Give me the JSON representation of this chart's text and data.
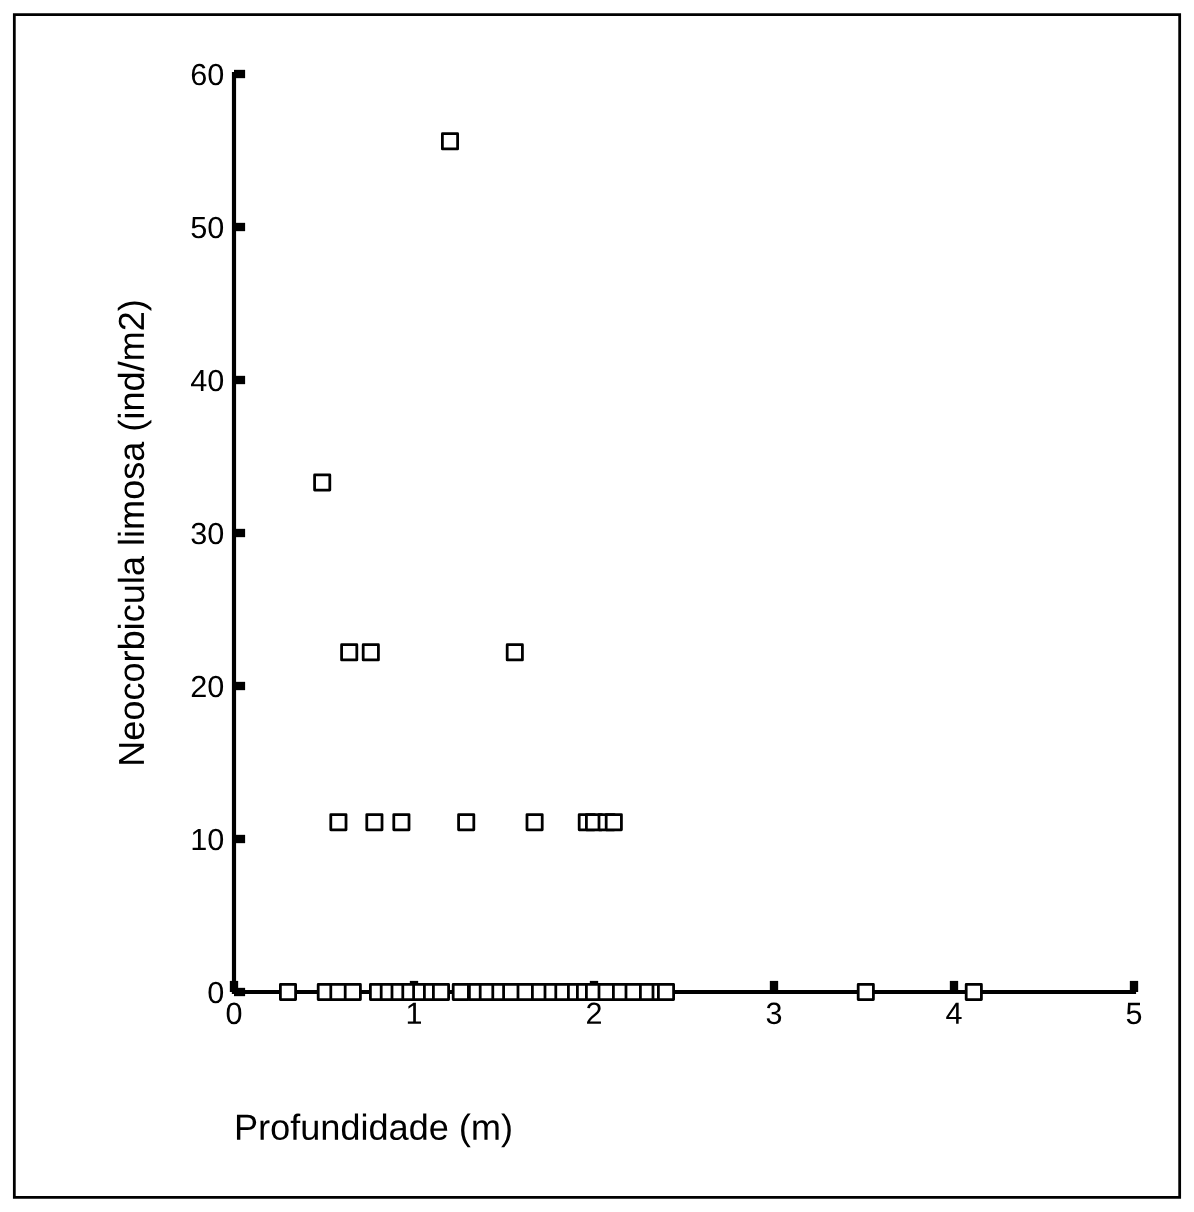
{
  "chart_data": {
    "type": "scatter",
    "xlabel": "Profundidade (m)",
    "ylabel": "Neocorbicula limosa (ind/m2)",
    "xlim": [
      0,
      5
    ],
    "xticks": [
      0,
      1,
      2,
      3,
      4,
      5
    ],
    "ylim": [
      0,
      60
    ],
    "yticks": [
      0,
      10,
      20,
      30,
      40,
      50,
      60
    ],
    "marker": "square",
    "grid": false,
    "series": [
      {
        "color": "#000000",
        "x": [
          1.2,
          0.49,
          0.64,
          0.76,
          1.56,
          0.58,
          0.78,
          0.93,
          1.29,
          1.67,
          1.96,
          2.0,
          2.07,
          2.11,
          0.3,
          0.51,
          0.58,
          0.66,
          0.8,
          0.86,
          0.92,
          0.98,
          1.04,
          1.1,
          1.15,
          1.26,
          1.35,
          1.41,
          1.48,
          1.54,
          1.62,
          1.7,
          1.77,
          1.83,
          1.9,
          1.95,
          2.0,
          2.07,
          2.15,
          2.22,
          2.3,
          2.37,
          2.4,
          3.51,
          4.11
        ],
        "values": [
          55.6,
          33.3,
          22.2,
          22.2,
          22.2,
          11.1,
          11.1,
          11.1,
          11.1,
          11.1,
          11.1,
          11.1,
          11.1,
          11.1,
          0,
          0,
          0,
          0,
          0,
          0,
          0,
          0,
          0,
          0,
          0,
          0,
          0,
          0,
          0,
          0,
          0,
          0,
          0,
          0,
          0,
          0,
          0,
          0,
          0,
          0,
          0,
          0,
          0,
          0,
          0
        ]
      }
    ]
  }
}
